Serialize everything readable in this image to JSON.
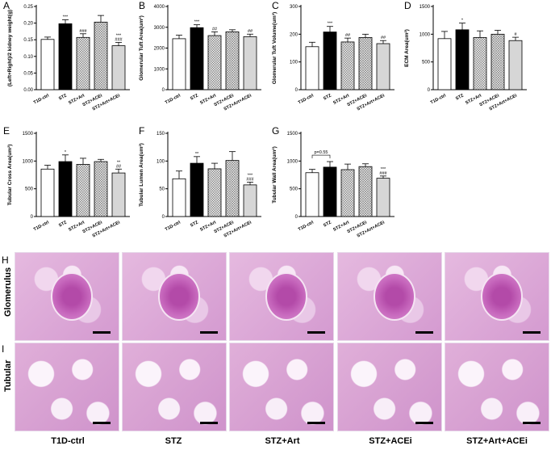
{
  "groups": [
    "T1D-ctrl",
    "STZ",
    "STZ+Art",
    "STZ+ACEi",
    "STZ+Art+ACEi"
  ],
  "colors": {
    "ctrl": "#ffffff",
    "stz": "#000000",
    "art": "#d9d9d9",
    "acei": "#c8c8c8",
    "combo": "#d6d6d6"
  },
  "chart_data": [
    {
      "panel": "A",
      "type": "bar",
      "ylabel": "(Left+Right)/2 kidney weight(g)",
      "ylim": [
        0,
        0.25
      ],
      "yticks": [
        0,
        0.05,
        0.1,
        0.15,
        0.2,
        0.25
      ],
      "ytick_labels": [
        "0.00",
        "0.05",
        "0.10",
        "0.15",
        "0.20",
        "0.25"
      ],
      "categories": [
        "T1D-ctrl",
        "STZ",
        "STZ+Art",
        "STZ+ACEi",
        "STZ+Art+ACEi"
      ],
      "values": [
        0.151,
        0.198,
        0.157,
        0.203,
        0.132
      ],
      "errors": [
        0.007,
        0.012,
        0.011,
        0.02,
        0.01
      ],
      "annotations": [
        "",
        "***",
        "###",
        "",
        "***\n###"
      ]
    },
    {
      "panel": "B",
      "type": "bar",
      "ylabel": "Glomerular Tuft Area(um²)",
      "ylim": [
        0,
        4000
      ],
      "yticks": [
        0,
        1000,
        2000,
        3000,
        4000
      ],
      "ytick_labels": [
        "0",
        "1000",
        "2000",
        "3000",
        "4000"
      ],
      "categories": [
        "T1D-ctrl",
        "STZ",
        "STZ+Art",
        "STZ+ACEi",
        "STZ+Art+ACEi"
      ],
      "values": [
        2450,
        2980,
        2600,
        2780,
        2550
      ],
      "errors": [
        170,
        140,
        180,
        100,
        120
      ],
      "annotations": [
        "",
        "***",
        "##",
        "",
        "##"
      ]
    },
    {
      "panel": "C",
      "type": "bar",
      "ylabel": "Glomerular Tuft Volume(um³)",
      "ylim": [
        0,
        300
      ],
      "yticks": [
        0,
        100,
        200,
        300
      ],
      "ytick_labels": [
        "0",
        "100",
        "200",
        "300"
      ],
      "categories": [
        "T1D-ctrl",
        "STZ",
        "STZ+Art",
        "STZ+ACEi",
        "STZ+Art+ACEi"
      ],
      "values": [
        155,
        208,
        172,
        188,
        166
      ],
      "errors": [
        16,
        20,
        14,
        12,
        11
      ],
      "annotations": [
        "",
        "***",
        "##",
        "",
        "##"
      ]
    },
    {
      "panel": "D",
      "type": "bar",
      "ylabel": "ECM Area(um²)",
      "ylim": [
        0,
        1500
      ],
      "yticks": [
        0,
        500,
        1000,
        1500
      ],
      "ytick_labels": [
        "0",
        "500",
        "1000",
        "1500"
      ],
      "categories": [
        "T1D-ctrl",
        "STZ",
        "STZ+Art",
        "STZ+ACEi",
        "STZ+Art+ACEi"
      ],
      "values": [
        920,
        1080,
        940,
        1000,
        885
      ],
      "errors": [
        130,
        120,
        120,
        70,
        60
      ],
      "annotations": [
        "",
        "*",
        "",
        "",
        "#"
      ]
    },
    {
      "panel": "E",
      "type": "bar",
      "ylabel": "Tubular Cross Area(um²)",
      "ylim": [
        0,
        1500
      ],
      "yticks": [
        0,
        500,
        1000,
        1500
      ],
      "ytick_labels": [
        "0",
        "500",
        "1000",
        "1500"
      ],
      "categories": [
        "T1D-ctrl",
        "STZ",
        "STZ+Art",
        "STZ+ACEi",
        "STZ+Art+ACEi"
      ],
      "values": [
        855,
        990,
        940,
        990,
        785
      ],
      "errors": [
        70,
        120,
        110,
        40,
        70
      ],
      "annotations": [
        "",
        "*",
        "",
        "",
        "**\n##"
      ]
    },
    {
      "panel": "F",
      "type": "bar",
      "ylabel": "Tubular Lumen Area(um²)",
      "ylim": [
        0,
        150
      ],
      "yticks": [
        0,
        50,
        100,
        150
      ],
      "ytick_labels": [
        "0",
        "50",
        "100",
        "150"
      ],
      "categories": [
        "T1D-ctrl",
        "STZ",
        "STZ+Art",
        "STZ+ACEi",
        "STZ+Art+ACEi"
      ],
      "values": [
        68,
        96,
        86,
        101,
        57
      ],
      "errors": [
        14,
        12,
        10,
        16,
        5
      ],
      "annotations": [
        "",
        "**",
        "",
        "",
        "***\n###"
      ]
    },
    {
      "panel": "G",
      "type": "bar",
      "ylabel": "Tubular Wall Area(um²)",
      "ylim": [
        0,
        1500
      ],
      "yticks": [
        0,
        500,
        1000,
        1500
      ],
      "ytick_labels": [
        "0",
        "500",
        "1000",
        "1500"
      ],
      "categories": [
        "T1D-ctrl",
        "STZ",
        "STZ+Art",
        "STZ+ACEi",
        "STZ+Art+ACEi"
      ],
      "values": [
        790,
        890,
        845,
        900,
        690
      ],
      "errors": [
        60,
        100,
        100,
        50,
        40
      ],
      "annotations": [
        "",
        "",
        "",
        "",
        "***\n###"
      ],
      "bracket": {
        "from": 0,
        "to": 1,
        "label": "p=0.55"
      }
    }
  ],
  "micro": {
    "row_letters": [
      "H",
      "I"
    ],
    "row_labels": [
      "Glomerulus",
      "Tubular"
    ],
    "column_labels": [
      "T1D-ctrl",
      "STZ",
      "STZ+Art",
      "STZ+ACEi",
      "STZ+Art+ACEi"
    ]
  }
}
